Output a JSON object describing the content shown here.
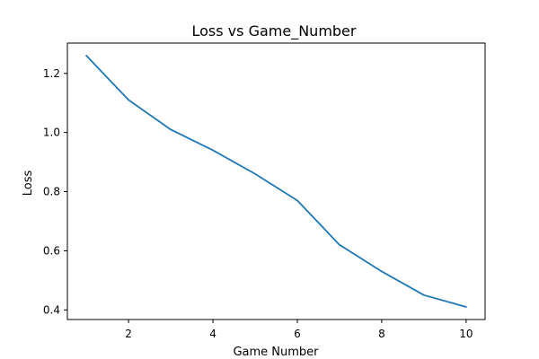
{
  "chart_data": {
    "type": "line",
    "title": "Loss vs Game_Number",
    "xlabel": "Game Number",
    "ylabel": "Loss",
    "x": [
      1,
      2,
      3,
      4,
      5,
      6,
      7,
      8,
      9,
      10
    ],
    "series": [
      {
        "values": [
          1.26,
          1.11,
          1.01,
          0.94,
          0.86,
          0.77,
          0.62,
          0.53,
          0.45,
          0.41
        ]
      }
    ],
    "xlim": [
      0.55,
      10.45
    ],
    "ylim": [
      0.3675,
      1.3025
    ],
    "xticks": [
      2,
      4,
      6,
      8,
      10
    ],
    "yticks": [
      0.4,
      0.6,
      0.8,
      1.0,
      1.2
    ],
    "xtick_labels": [
      "2",
      "4",
      "6",
      "8",
      "10"
    ],
    "ytick_labels": [
      "0.4",
      "0.6",
      "0.8",
      "1.0",
      "1.2"
    ],
    "grid": false,
    "legend": "none",
    "line_color": "#1f77b4"
  }
}
